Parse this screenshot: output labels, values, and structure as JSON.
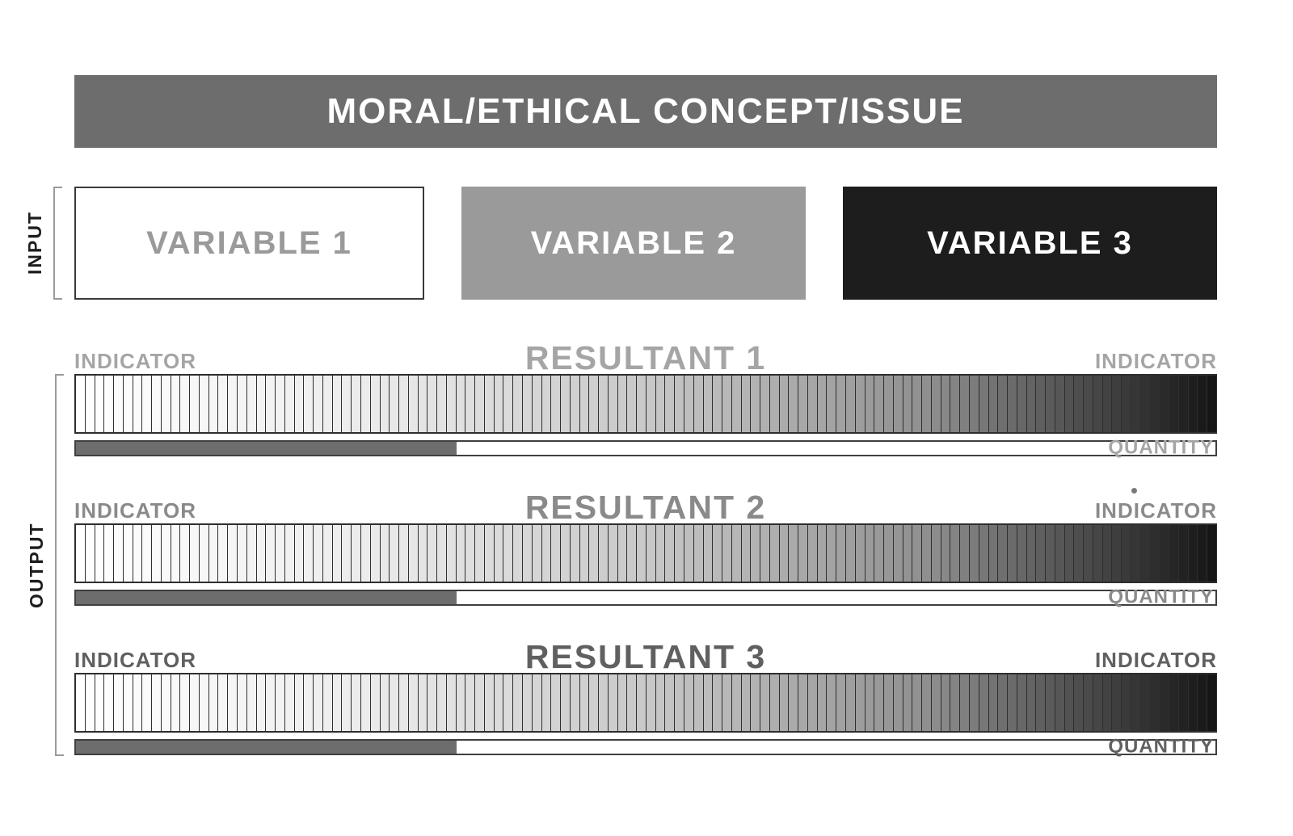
{
  "header": {
    "title": "MORAL/ETHICAL CONCEPT/ISSUE",
    "bg": "#6d6d6d",
    "text_color": "#ffffff"
  },
  "input": {
    "label": "INPUT",
    "bracket_color": "#9a9a9a",
    "variables": [
      {
        "label": "VARIABLE 1",
        "bg": "#ffffff",
        "text_color": "#9a9a9a",
        "border": "#3a3a3a"
      },
      {
        "label": "VARIABLE 2",
        "bg": "#9a9a9a",
        "text_color": "#ffffff",
        "border": "#9a9a9a"
      },
      {
        "label": "VARIABLE 3",
        "bg": "#1d1d1d",
        "text_color": "#ffffff",
        "border": "#1d1d1d"
      }
    ]
  },
  "output": {
    "label": "OUTPUT",
    "bracket_color": "#9a9a9a",
    "gradient": {
      "segments": 120,
      "separator_color": "#2e2e2e",
      "stops": [
        [
          0,
          "#ffffff"
        ],
        [
          0.25,
          "#ececec"
        ],
        [
          0.5,
          "#c8c8c8"
        ],
        [
          0.75,
          "#8f8f8f"
        ],
        [
          0.92,
          "#3c3c3c"
        ],
        [
          1,
          "#161616"
        ]
      ]
    },
    "rows": [
      {
        "title": "RESULTANT 1",
        "left_indicator": "INDICATOR",
        "right_indicator": "INDICATOR",
        "quantity_label": "QUANTITY",
        "tint": "#a5a5a5",
        "quantity_fill_color": "#6d6d6d",
        "quantity_percent": "33.4%"
      },
      {
        "title": "RESULTANT 2",
        "left_indicator": "INDICATOR",
        "right_indicator": "INDICATOR",
        "quantity_label": "QUANTITY",
        "tint": "#8a8a8a",
        "quantity_fill_color": "#6d6d6d",
        "quantity_percent": "33.4%"
      },
      {
        "title": "RESULTANT 3",
        "left_indicator": "INDICATOR",
        "right_indicator": "INDICATOR",
        "quantity_label": "QUANTITY",
        "tint": "#606060",
        "quantity_fill_color": "#6d6d6d",
        "quantity_percent": "33.4%"
      }
    ],
    "dot_color": "#7a7a7a"
  }
}
